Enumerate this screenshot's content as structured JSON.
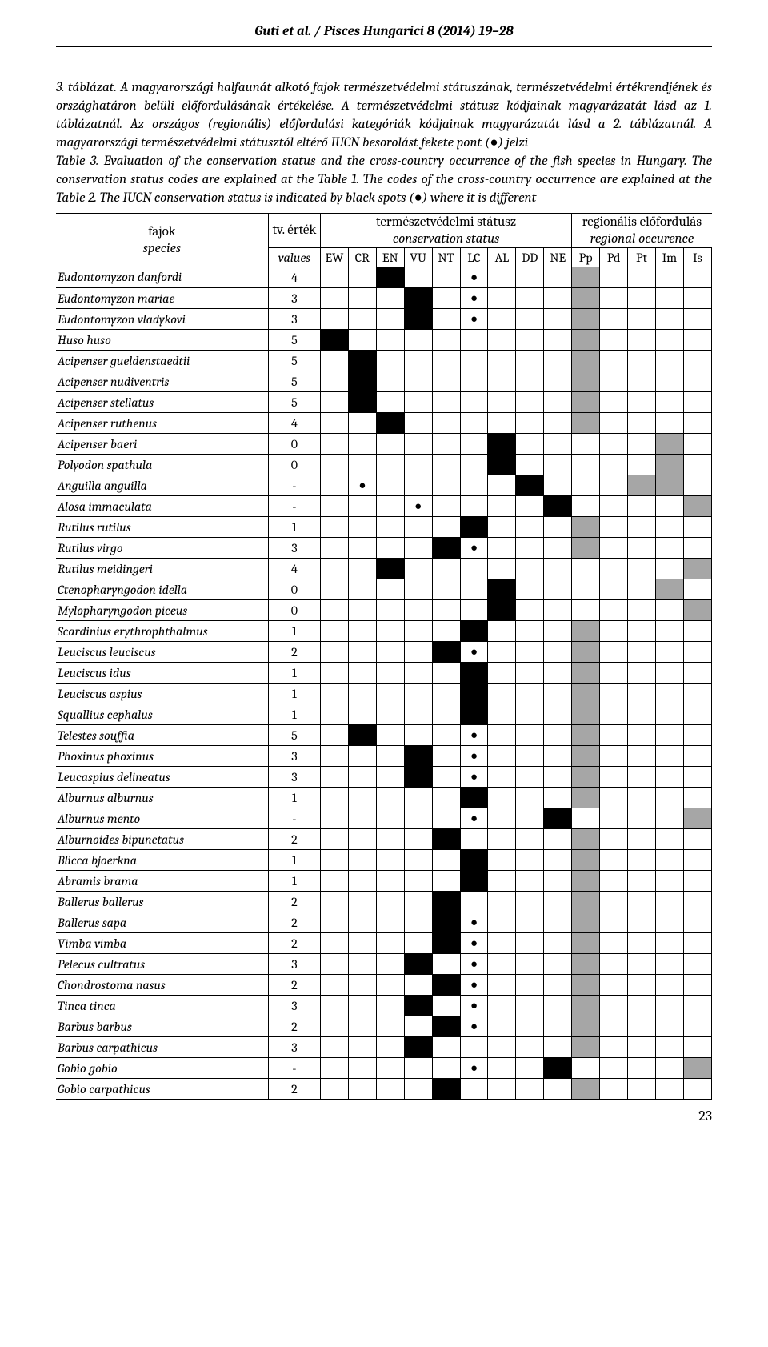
{
  "running_head": "Guti et al. / Pisces Hungarici 8 (2014) 19–28",
  "page_number": "23",
  "caption": {
    "line1": "3. táblázat. A magyarországi halfaunát alkotó fajok természetvédelmi státuszának, természetvédelmi értékrendjének és országhatáron belüli előfordulásának értékelése. A természetvédelmi státusz kódjainak magyarázatát lásd az 1. táblázatnál. Az országos (regionális) előfordulási kategóriák kódjainak magyarázatát lásd a 2. táblázatnál.  A magyarországi természetvédelmi státusztól eltérő IUCN besorolást fekete pont (●) jelzi",
    "line2": "Table 3. Evaluation of the conservation status and the cross-country occurrence of the fish species in Hungary. The conservation status codes are explained at the Table 1. The codes of the cross-country occurrence are explained at the Table 2. The IUCN conservation status is indicated by black spots (●) where it is different"
  },
  "headers": {
    "species_hu": "fajok",
    "species_en": "species",
    "value_hu": "tv. érték",
    "value_en": "values",
    "status_hu": "természetvédelmi státusz",
    "status_en": "conservation status",
    "regional_hu": "regionális előfordulás",
    "regional_en": "regional occurence",
    "status_codes": [
      "EW",
      "CR",
      "EN",
      "VU",
      "NT",
      "LC",
      "AL",
      "DD",
      "NE"
    ],
    "regional_codes": [
      "Pp",
      "Pd",
      "Pt",
      "Im",
      "Is"
    ]
  },
  "colors": {
    "black": "#000000",
    "grey": "#a6a6a6",
    "background": "#ffffff"
  },
  "rows": [
    {
      "name": "Eudontomyzon danfordi",
      "val": "4",
      "status": [
        "",
        "",
        "B",
        "",
        "",
        "D",
        "",
        "",
        ""
      ],
      "reg": [
        "G",
        "",
        "",
        "",
        ""
      ]
    },
    {
      "name": "Eudontomyzon mariae",
      "val": "3",
      "status": [
        "",
        "",
        "",
        "B",
        "",
        "D",
        "",
        "",
        ""
      ],
      "reg": [
        "G",
        "",
        "",
        "",
        ""
      ]
    },
    {
      "name": "Eudontomyzon vladykovi",
      "val": "3",
      "status": [
        "",
        "",
        "",
        "B",
        "",
        "D",
        "",
        "",
        ""
      ],
      "reg": [
        "G",
        "",
        "",
        "",
        ""
      ]
    },
    {
      "name": "Huso huso",
      "val": "5",
      "status": [
        "B",
        "",
        "",
        "",
        "",
        "",
        "",
        "",
        ""
      ],
      "reg": [
        "G",
        "",
        "",
        "",
        ""
      ]
    },
    {
      "name": "Acipenser gueldenstaedtii",
      "val": "5",
      "status": [
        "",
        "B",
        "",
        "",
        "",
        "",
        "",
        "",
        ""
      ],
      "reg": [
        "G",
        "",
        "",
        "",
        ""
      ]
    },
    {
      "name": "Acipenser nudiventris",
      "val": "5",
      "status": [
        "",
        "B",
        "",
        "",
        "",
        "",
        "",
        "",
        ""
      ],
      "reg": [
        "G",
        "",
        "",
        "",
        ""
      ]
    },
    {
      "name": "Acipenser stellatus",
      "val": "5",
      "status": [
        "",
        "B",
        "",
        "",
        "",
        "",
        "",
        "",
        ""
      ],
      "reg": [
        "G",
        "",
        "",
        "",
        ""
      ]
    },
    {
      "name": "Acipenser ruthenus",
      "val": "4",
      "status": [
        "",
        "",
        "B",
        "",
        "",
        "",
        "",
        "",
        ""
      ],
      "reg": [
        "G",
        "",
        "",
        "",
        ""
      ]
    },
    {
      "name": "Acipenser baeri",
      "val": "0",
      "status": [
        "",
        "",
        "",
        "",
        "",
        "",
        "B",
        "",
        ""
      ],
      "reg": [
        "",
        "",
        "",
        "G",
        ""
      ]
    },
    {
      "name": "Polyodon spathula",
      "val": "0",
      "status": [
        "",
        "",
        "",
        "",
        "",
        "",
        "B",
        "",
        ""
      ],
      "reg": [
        "",
        "",
        "",
        "G",
        ""
      ]
    },
    {
      "name": "Anguilla anguilla",
      "val": "-",
      "status": [
        "",
        "D",
        "",
        "",
        "",
        "",
        "",
        "B",
        ""
      ],
      "reg": [
        "",
        "",
        "G",
        "G",
        ""
      ]
    },
    {
      "name": "Alosa immaculata",
      "val": "-",
      "status": [
        "",
        "",
        "",
        "D",
        "",
        "",
        "",
        "",
        "B"
      ],
      "reg": [
        "",
        "",
        "",
        "",
        "G"
      ]
    },
    {
      "name": "Rutilus rutilus",
      "val": "1",
      "status": [
        "",
        "",
        "",
        "",
        "",
        "B",
        "",
        "",
        ""
      ],
      "reg": [
        "G",
        "",
        "",
        "",
        ""
      ]
    },
    {
      "name": "Rutilus virgo",
      "val": "3",
      "status": [
        "",
        "",
        "",
        "",
        "B",
        "D",
        "",
        "",
        ""
      ],
      "reg": [
        "G",
        "",
        "",
        "",
        ""
      ]
    },
    {
      "name": "Rutilus meidingeri",
      "val": "4",
      "status": [
        "",
        "",
        "B",
        "",
        "",
        "",
        "",
        "",
        ""
      ],
      "reg": [
        "",
        "",
        "",
        "",
        "G"
      ]
    },
    {
      "name": "Ctenopharyngodon idella",
      "val": "0",
      "status": [
        "",
        "",
        "",
        "",
        "",
        "",
        "B",
        "",
        ""
      ],
      "reg": [
        "",
        "",
        "",
        "G",
        ""
      ]
    },
    {
      "name": "Mylopharyngodon piceus",
      "val": "0",
      "status": [
        "",
        "",
        "",
        "",
        "",
        "",
        "B",
        "",
        ""
      ],
      "reg": [
        "",
        "",
        "",
        "",
        "G"
      ]
    },
    {
      "name": "Scardinius erythrophthalmus",
      "val": "1",
      "status": [
        "",
        "",
        "",
        "",
        "",
        "B",
        "",
        "",
        ""
      ],
      "reg": [
        "G",
        "",
        "",
        "",
        ""
      ]
    },
    {
      "name": "Leuciscus leuciscus",
      "val": "2",
      "status": [
        "",
        "",
        "",
        "",
        "B",
        "D",
        "",
        "",
        ""
      ],
      "reg": [
        "G",
        "",
        "",
        "",
        ""
      ]
    },
    {
      "name": "Leuciscus idus",
      "val": "1",
      "status": [
        "",
        "",
        "",
        "",
        "",
        "B",
        "",
        "",
        ""
      ],
      "reg": [
        "G",
        "",
        "",
        "",
        ""
      ]
    },
    {
      "name": "Leuciscus aspius",
      "val": "1",
      "status": [
        "",
        "",
        "",
        "",
        "",
        "B",
        "",
        "",
        ""
      ],
      "reg": [
        "G",
        "",
        "",
        "",
        ""
      ]
    },
    {
      "name": "Squallius cephalus",
      "val": "1",
      "status": [
        "",
        "",
        "",
        "",
        "",
        "B",
        "",
        "",
        ""
      ],
      "reg": [
        "G",
        "",
        "",
        "",
        ""
      ]
    },
    {
      "name": "Telestes souffia",
      "val": "5",
      "status": [
        "",
        "B",
        "",
        "",
        "",
        "D",
        "",
        "",
        ""
      ],
      "reg": [
        "G",
        "",
        "",
        "",
        ""
      ]
    },
    {
      "name": "Phoxinus phoxinus",
      "val": "3",
      "status": [
        "",
        "",
        "",
        "B",
        "",
        "D",
        "",
        "",
        ""
      ],
      "reg": [
        "G",
        "",
        "",
        "",
        ""
      ]
    },
    {
      "name": "Leucaspius delineatus",
      "val": "3",
      "status": [
        "",
        "",
        "",
        "B",
        "",
        "D",
        "",
        "",
        ""
      ],
      "reg": [
        "G",
        "",
        "",
        "",
        ""
      ]
    },
    {
      "name": "Alburnus alburnus",
      "val": "1",
      "status": [
        "",
        "",
        "",
        "",
        "",
        "B",
        "",
        "",
        ""
      ],
      "reg": [
        "G",
        "",
        "",
        "",
        ""
      ]
    },
    {
      "name": "Alburnus mento",
      "val": "-",
      "status": [
        "",
        "",
        "",
        "",
        "",
        "D",
        "",
        "",
        "B"
      ],
      "reg": [
        "",
        "",
        "",
        "",
        "G"
      ]
    },
    {
      "name": "Alburnoides bipunctatus",
      "val": "2",
      "status": [
        "",
        "",
        "",
        "",
        "B",
        "",
        "",
        "",
        ""
      ],
      "reg": [
        "G",
        "",
        "",
        "",
        ""
      ]
    },
    {
      "name": "Blicca bjoerkna",
      "val": "1",
      "status": [
        "",
        "",
        "",
        "",
        "",
        "B",
        "",
        "",
        ""
      ],
      "reg": [
        "G",
        "",
        "",
        "",
        ""
      ]
    },
    {
      "name": "Abramis brama",
      "val": "1",
      "status": [
        "",
        "",
        "",
        "",
        "",
        "B",
        "",
        "",
        ""
      ],
      "reg": [
        "G",
        "",
        "",
        "",
        ""
      ]
    },
    {
      "name": "Ballerus ballerus",
      "val": "2",
      "status": [
        "",
        "",
        "",
        "",
        "B",
        "",
        "",
        "",
        ""
      ],
      "reg": [
        "G",
        "",
        "",
        "",
        ""
      ]
    },
    {
      "name": "Ballerus sapa",
      "val": "2",
      "status": [
        "",
        "",
        "",
        "",
        "B",
        "D",
        "",
        "",
        ""
      ],
      "reg": [
        "G",
        "",
        "",
        "",
        ""
      ]
    },
    {
      "name": "Vimba vimba",
      "val": "2",
      "status": [
        "",
        "",
        "",
        "",
        "B",
        "D",
        "",
        "",
        ""
      ],
      "reg": [
        "G",
        "",
        "",
        "",
        ""
      ]
    },
    {
      "name": "Pelecus cultratus",
      "val": "3",
      "status": [
        "",
        "",
        "",
        "B",
        "",
        "D",
        "",
        "",
        ""
      ],
      "reg": [
        "G",
        "",
        "",
        "",
        ""
      ]
    },
    {
      "name": "Chondrostoma nasus",
      "val": "2",
      "status": [
        "",
        "",
        "",
        "",
        "B",
        "D",
        "",
        "",
        ""
      ],
      "reg": [
        "G",
        "",
        "",
        "",
        ""
      ]
    },
    {
      "name": "Tinca tinca",
      "val": "3",
      "status": [
        "",
        "",
        "",
        "B",
        "",
        "D",
        "",
        "",
        ""
      ],
      "reg": [
        "G",
        "",
        "",
        "",
        ""
      ]
    },
    {
      "name": "Barbus barbus",
      "val": "2",
      "status": [
        "",
        "",
        "",
        "",
        "B",
        "D",
        "",
        "",
        ""
      ],
      "reg": [
        "G",
        "",
        "",
        "",
        ""
      ]
    },
    {
      "name": "Barbus carpathicus",
      "val": "3",
      "status": [
        "",
        "",
        "",
        "B",
        "",
        "",
        "",
        "",
        ""
      ],
      "reg": [
        "G",
        "",
        "",
        "",
        ""
      ]
    },
    {
      "name": "Gobio gobio",
      "val": "-",
      "status": [
        "",
        "",
        "",
        "",
        "",
        "D",
        "",
        "",
        "B"
      ],
      "reg": [
        "",
        "",
        "",
        "",
        "G"
      ]
    },
    {
      "name": "Gobio carpathicus",
      "val": "2",
      "status": [
        "",
        "",
        "",
        "",
        "B",
        "",
        "",
        "",
        ""
      ],
      "reg": [
        "G",
        "",
        "",
        "",
        ""
      ]
    }
  ]
}
